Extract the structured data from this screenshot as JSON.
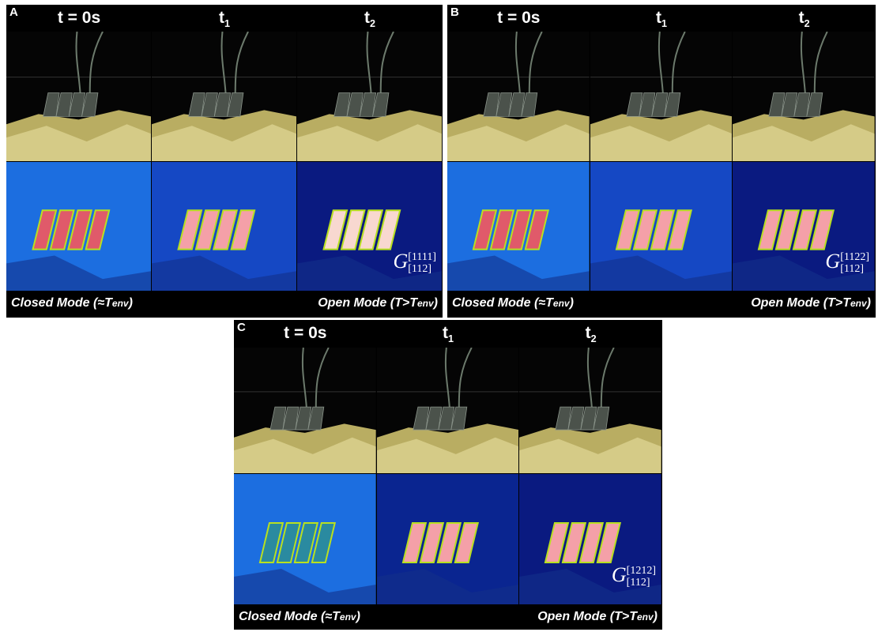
{
  "panels": [
    {
      "label": "A",
      "headers": [
        {
          "base": "t = 0s"
        },
        {
          "base": "t",
          "sub": "1"
        },
        {
          "base": "t",
          "sub": "2"
        }
      ],
      "notation": {
        "base": "G",
        "sup": "[1111]",
        "sub": "[112]"
      },
      "captions": {
        "closed": {
          "prefix": "Closed Mode (≈",
          "var": "T",
          "sub": "env",
          "suffix": ")"
        },
        "open": {
          "prefix": "Open Mode (T>",
          "var": "T",
          "sub": "env",
          "suffix": ")"
        }
      }
    },
    {
      "label": "B",
      "headers": [
        {
          "base": "t = 0s"
        },
        {
          "base": "t",
          "sub": "1"
        },
        {
          "base": "t",
          "sub": "2"
        }
      ],
      "notation": {
        "base": "G",
        "sup": "[1122]",
        "sub": "[112]"
      },
      "captions": {
        "closed": {
          "prefix": "Closed Mode (≈",
          "var": "T",
          "sub": "env",
          "suffix": ")"
        },
        "open": {
          "prefix": "Open Mode (T>",
          "var": "T",
          "sub": "env",
          "suffix": ")"
        }
      }
    },
    {
      "label": "C",
      "headers": [
        {
          "base": "t = 0s"
        },
        {
          "base": "t",
          "sub": "1"
        },
        {
          "base": "t",
          "sub": "2"
        }
      ],
      "notation": {
        "base": "G",
        "sup": "[1212]",
        "sub": "[112]"
      },
      "captions": {
        "closed": {
          "prefix": "Closed Mode (≈",
          "var": "T",
          "sub": "env",
          "suffix": ")"
        },
        "open": {
          "prefix": "Open Mode (T>",
          "var": "T",
          "sub": "env",
          "suffix": ")"
        }
      }
    }
  ]
}
